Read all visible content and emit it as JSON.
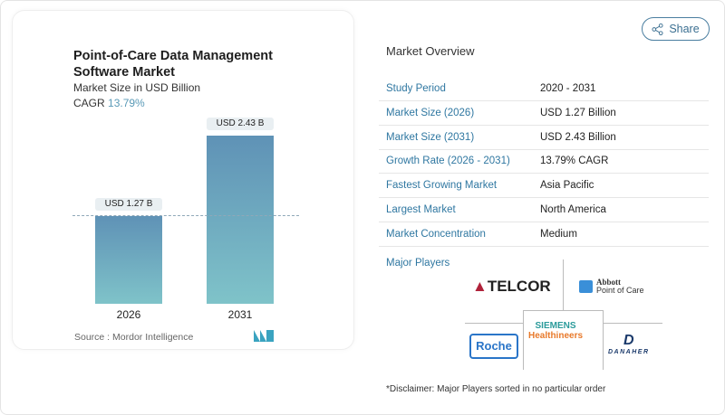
{
  "chart_card": {
    "title": "Point-of-Care Data Management Software Market",
    "subtitle": "Market Size in USD Billion",
    "cagr_label": "CAGR",
    "cagr_value": "13.79%",
    "source": "Source :  Mordor Intelligence",
    "logo": "Mordor Intelligence"
  },
  "chart_data": {
    "type": "bar",
    "categories": [
      "2026",
      "2031"
    ],
    "values": [
      1.27,
      2.43
    ],
    "data_labels": [
      "USD 1.27 B",
      "USD 2.43 B"
    ],
    "title": "Point-of-Care Data Management Software Market",
    "ylabel": "Market Size in USD Billion",
    "colors": [
      "#5f92b6",
      "#7fc3c9"
    ]
  },
  "share": {
    "label": "Share",
    "icon": "share-icon"
  },
  "overview": {
    "title": "Market Overview",
    "rows": [
      {
        "label": "Study Period",
        "value": "2020 - 2031"
      },
      {
        "label": "Market Size (2026)",
        "value": "USD 1.27 Billion"
      },
      {
        "label": "Market Size (2031)",
        "value": "USD 2.43 Billion"
      },
      {
        "label": "Growth Rate (2026 - 2031)",
        "value": "13.79% CAGR"
      },
      {
        "label": "Fastest Growing Market",
        "value": "Asia Pacific"
      },
      {
        "label": "Largest Market",
        "value": "North America"
      },
      {
        "label": "Market Concentration",
        "value": "Medium"
      }
    ]
  },
  "players": {
    "title": "Major Players",
    "logos": [
      "ATELCOR",
      "Abbott Point of Care",
      "SIEMENS Healthineers",
      "Roche",
      "DANAHER"
    ],
    "disclaimer": "*Disclaimer: Major Players sorted in no particular order"
  }
}
